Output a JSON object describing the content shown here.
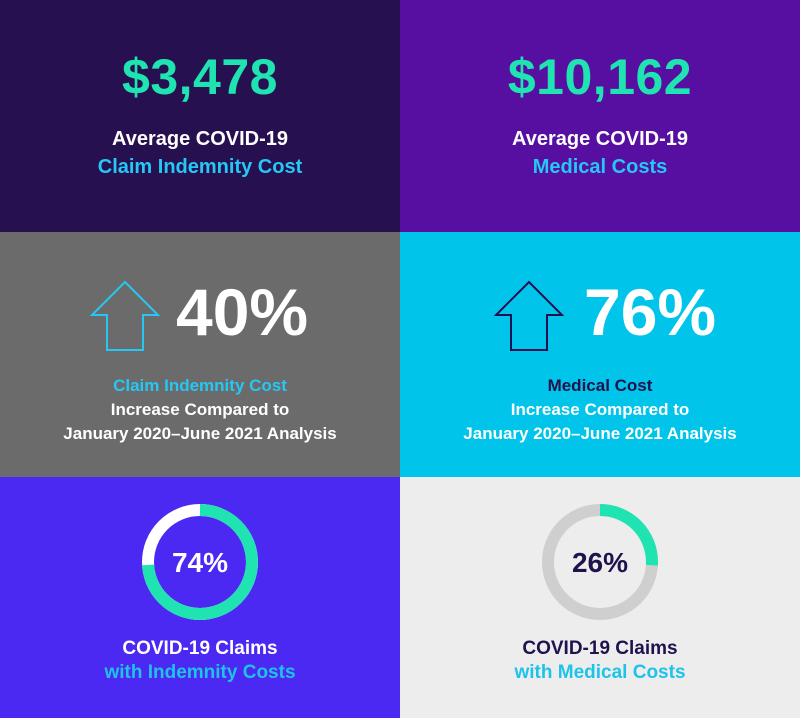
{
  "tiles": {
    "indemnity_avg": {
      "value": "$3,478",
      "line1": "Average COVID-19",
      "line2": "Claim Indemnity Cost"
    },
    "medical_avg": {
      "value": "$10,162",
      "line1": "Average COVID-19",
      "line2": "Medical Costs"
    },
    "indemnity_increase": {
      "percent": "40%",
      "line1": "Claim Indemnity Cost",
      "line2": "Increase Compared to",
      "line3": "January 2020–June 2021 Analysis",
      "icon": "up-arrow-icon"
    },
    "medical_increase": {
      "percent": "76%",
      "line1": "Medical Cost",
      "line2": "Increase Compared to",
      "line3": "January 2020–June 2021 Analysis",
      "icon": "up-arrow-icon"
    },
    "indemnity_claims": {
      "percent_label": "74%",
      "fraction": 0.74,
      "line1": "COVID-19 Claims",
      "line2": "with Indemnity Costs"
    },
    "medical_claims": {
      "percent_label": "26%",
      "fraction": 0.26,
      "line1": "COVID-19 Claims",
      "line2": "with Medical Costs"
    }
  },
  "colors": {
    "green": "#20e3b2",
    "cyan": "#25c8f5",
    "navy": "#20134d",
    "ring_white": "#ffffff",
    "ring_gray": "#cfcfcf"
  }
}
